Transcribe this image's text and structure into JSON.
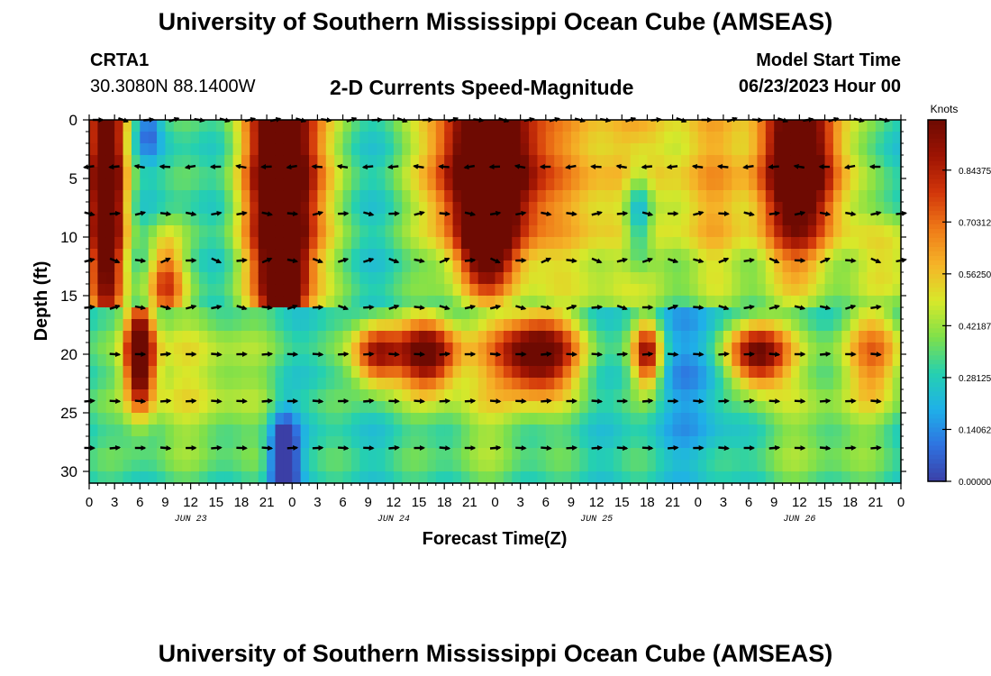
{
  "header": {
    "title": "University of Southern Mississippi Ocean Cube (AMSEAS)",
    "station": "CRTA1",
    "coords": "30.3080N  88.1400W",
    "subtitle": "2-D Currents Speed-Magnitude",
    "model_label": "Model Start Time",
    "model_time": "06/23/2023 Hour 00"
  },
  "footer": {
    "title": "University of Southern Mississippi Ocean Cube (AMSEAS)"
  },
  "colors": {
    "scale": [
      "#3b3fa6",
      "#2f72e0",
      "#1fb0e8",
      "#25d0b0",
      "#7fe04a",
      "#d8e82a",
      "#f5b428",
      "#ef7a18",
      "#d2360a",
      "#9e1403",
      "#6e0a02"
    ]
  },
  "chart_data": {
    "type": "heatmap",
    "title": "2-D Currents Speed-Magnitude",
    "xlabel": "Forecast Time(Z)",
    "ylabel": "Depth (ft)",
    "xlim": [
      0,
      96
    ],
    "ylim": [
      0,
      31
    ],
    "x_tick_hours": [
      0,
      3,
      6,
      9,
      12,
      15,
      18,
      21,
      24,
      27,
      30,
      33,
      36,
      39,
      42,
      45,
      48,
      51,
      54,
      57,
      60,
      63,
      66,
      69,
      72,
      75,
      78,
      81,
      84,
      87,
      90,
      93,
      96
    ],
    "x_tick_labels": [
      "0",
      "3",
      "6",
      "9",
      "12",
      "15",
      "18",
      "21",
      "0",
      "3",
      "6",
      "9",
      "12",
      "15",
      "18",
      "21",
      "0",
      "3",
      "6",
      "9",
      "12",
      "15",
      "18",
      "21",
      "0",
      "3",
      "6",
      "9",
      "12",
      "15",
      "18",
      "21",
      "0"
    ],
    "date_labels": [
      {
        "hour": 12,
        "label": "JUN 23"
      },
      {
        "hour": 36,
        "label": "JUN 24"
      },
      {
        "hour": 60,
        "label": "JUN 25"
      },
      {
        "hour": 84,
        "label": "JUN 26"
      }
    ],
    "y_ticks": [
      0,
      5,
      10,
      15,
      20,
      25,
      30
    ],
    "y_tick_labels": [
      "0",
      "5",
      "10",
      "15",
      "20",
      "25",
      "30"
    ],
    "colorbar": {
      "label": "Knots",
      "range": [
        0,
        0.98
      ],
      "tick_values": [
        0.0,
        0.140625,
        0.28125,
        0.421875,
        0.5625,
        0.703125,
        0.84375
      ],
      "tick_labels": [
        "0.00000",
        "0.14062",
        "0.28125",
        "0.42187",
        "0.56250",
        "0.70312",
        "0.84375"
      ]
    },
    "depth_layers": [
      0,
      4,
      8,
      12,
      16,
      20,
      24,
      28
    ],
    "bands": [
      {
        "top": 0,
        "bottom": 16.5,
        "blobs": [
          {
            "hour": 2,
            "depth": 6,
            "sh": 1.6,
            "sd": 9,
            "amp": 0.95
          },
          {
            "hour": 23,
            "depth": 5,
            "sh": 3.2,
            "sd": 9,
            "amp": 1.0
          },
          {
            "hour": 23,
            "depth": 14,
            "sh": 1.5,
            "sd": 3,
            "amp": 0.55
          },
          {
            "hour": 47,
            "depth": 4,
            "sh": 4.5,
            "sd": 6,
            "amp": 1.0
          },
          {
            "hour": 47,
            "depth": 11,
            "sh": 2.0,
            "sd": 2.5,
            "amp": 0.45
          },
          {
            "hour": 84,
            "depth": 4,
            "sh": 3.5,
            "sd": 6,
            "amp": 0.95
          },
          {
            "hour": 9,
            "depth": 14,
            "sh": 1.6,
            "sd": 3,
            "amp": 0.5
          },
          {
            "hour": 62,
            "depth": 4,
            "sh": 8,
            "sd": 10,
            "amp": 0.3
          },
          {
            "hour": 74,
            "depth": 6,
            "sh": 3,
            "sd": 9,
            "amp": 0.2
          },
          {
            "hour": 95,
            "depth": 12,
            "sh": 3,
            "sd": 3,
            "amp": 0.25
          }
        ]
      },
      {
        "top": 16.5,
        "bottom": 31,
        "blobs": [
          {
            "hour": 6,
            "depth": 20,
            "sh": 1.2,
            "sd": 3.2,
            "amp": 0.9
          },
          {
            "hour": 34,
            "depth": 20,
            "sh": 2,
            "sd": 2,
            "amp": 0.6
          },
          {
            "hour": 40,
            "depth": 20,
            "sh": 2.5,
            "sd": 2.2,
            "amp": 0.7
          },
          {
            "hour": 53,
            "depth": 20,
            "sh": 3.5,
            "sd": 2.5,
            "amp": 0.75
          },
          {
            "hour": 66,
            "depth": 20,
            "sh": 1.2,
            "sd": 2,
            "amp": 0.6
          },
          {
            "hour": 79,
            "depth": 20,
            "sh": 2.5,
            "sd": 2,
            "amp": 0.7
          },
          {
            "hour": 93,
            "depth": 20,
            "sh": 2.5,
            "sd": 3,
            "amp": 0.35
          },
          {
            "hour": 13,
            "depth": 22,
            "sh": 6,
            "sd": 5,
            "amp": 0.2
          },
          {
            "hour": 47,
            "depth": 23,
            "sh": 5,
            "sd": 6,
            "amp": 0.15
          },
          {
            "hour": 86,
            "depth": 25,
            "sh": 6,
            "sd": 6,
            "amp": 0.12
          }
        ]
      }
    ],
    "dark_spots": [
      {
        "hour": 23,
        "depth": 29,
        "sh": 1.2,
        "sd": 2.8,
        "amp": 0.5
      },
      {
        "hour": 65,
        "depth": 8,
        "sh": 1.2,
        "sd": 3,
        "amp": 0.35
      },
      {
        "hour": 7,
        "depth": 1,
        "sh": 1,
        "sd": 1.5,
        "amp": 0.2
      },
      {
        "hour": 72,
        "depth": 22,
        "sh": 3,
        "sd": 6,
        "amp": 0.15
      }
    ],
    "arrows": [
      {
        "depth": 0,
        "hours": [
          1,
          4,
          7,
          10,
          13,
          16,
          19,
          22,
          25,
          28,
          31,
          34,
          37,
          40,
          43,
          46,
          49,
          52,
          55,
          58,
          61,
          64,
          67,
          70,
          73,
          76,
          79,
          82,
          85,
          88,
          91,
          94
        ],
        "dir": 0,
        "var": 20
      },
      {
        "depth": 4,
        "hours": [
          0,
          3,
          6,
          9,
          12,
          15,
          18,
          21,
          24,
          27,
          30,
          33,
          36,
          39,
          42,
          45,
          48,
          51,
          54,
          57,
          60,
          63,
          66,
          69,
          72,
          75,
          78,
          81,
          84,
          87,
          90,
          93
        ],
        "dir": 180,
        "var": 10
      },
      {
        "depth": 8,
        "hours": [
          0,
          3,
          6,
          9,
          12,
          15,
          18,
          21,
          24,
          27,
          30,
          33,
          36,
          39,
          42,
          45,
          48,
          51,
          54,
          57,
          60,
          63,
          66,
          69,
          72,
          75,
          78,
          81,
          84,
          87,
          90,
          93,
          96
        ],
        "dir": 0,
        "var": 15
      },
      {
        "depth": 12,
        "hours": [
          0,
          3,
          6,
          9,
          12,
          15,
          18,
          21,
          24,
          27,
          30,
          33,
          36,
          39,
          42,
          45,
          48,
          51,
          54,
          57,
          60,
          63,
          66,
          69,
          72,
          75,
          78,
          81,
          84,
          87,
          90,
          93,
          96
        ],
        "dir": 0,
        "var": 25
      },
      {
        "depth": 16,
        "hours": [
          0,
          3,
          6,
          9,
          12,
          15,
          18,
          21,
          24,
          27,
          30,
          33,
          36,
          39,
          42,
          45,
          48,
          51,
          54,
          57,
          60,
          63,
          66,
          69,
          72,
          75,
          78,
          81,
          84,
          87,
          90,
          93
        ],
        "dir": 0,
        "var": 20
      },
      {
        "depth": 20,
        "hours": [
          3,
          6,
          9,
          12,
          15,
          18,
          21,
          24,
          27,
          30,
          33,
          36,
          39,
          42,
          45,
          48,
          51,
          54,
          57,
          60,
          63,
          66,
          69,
          72,
          75,
          78,
          81,
          84,
          87,
          90,
          93
        ],
        "dir": 0,
        "var": 5
      },
      {
        "depth": 24,
        "hours": [
          0,
          3,
          6,
          9,
          12,
          15,
          18,
          21,
          24,
          27,
          30,
          33,
          36,
          39,
          42,
          45,
          48,
          51,
          54,
          57,
          60,
          63,
          66,
          69,
          72,
          75,
          78,
          81,
          84,
          87,
          90,
          93
        ],
        "dir": 0,
        "var": 5
      },
      {
        "depth": 28,
        "hours": [
          0,
          3,
          6,
          9,
          12,
          15,
          18,
          21,
          24,
          27,
          30,
          33,
          36,
          39,
          42,
          45,
          48,
          51,
          54,
          57,
          60,
          63,
          66,
          69,
          72,
          75,
          78,
          81,
          84,
          87,
          90,
          93
        ],
        "dir": 0,
        "var": 5
      }
    ]
  }
}
